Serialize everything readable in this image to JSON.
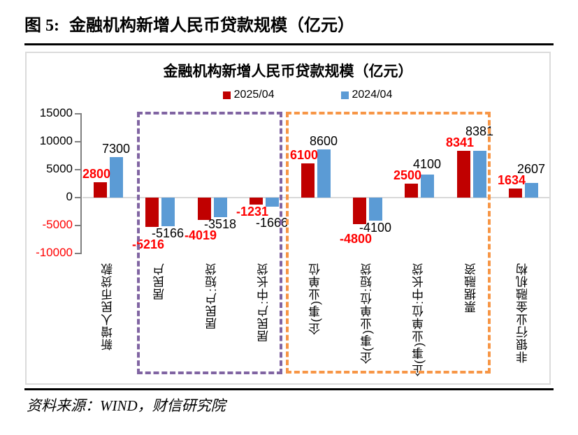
{
  "page": {
    "figure_label": "图 5:",
    "figure_title": "金融机构新增人民币贷款规模（亿元）",
    "source_text": "资料来源：WIND，财信研究院"
  },
  "chart_data": {
    "type": "bar",
    "title": "金融机构新增人民币贷款规模（亿元）",
    "categories": [
      "新增人民币贷款",
      "居民户",
      "居民户:短贷",
      "居民户:中长贷",
      "企(事)业单位",
      "企(事)业单位:短贷",
      "企(事)业单位:中长贷",
      "票据融资",
      "非银行业金融机构"
    ],
    "series": [
      {
        "name": "2025/04",
        "color": "#C00000",
        "label_color": "#FF0000",
        "values": [
          2800,
          -5216,
          -4019,
          -1231,
          6100,
          -4800,
          2500,
          8341,
          1634
        ]
      },
      {
        "name": "2024/04",
        "color": "#5B9BD5",
        "label_color": "#000000",
        "values": [
          7300,
          -5166,
          -3518,
          -1666,
          8600,
          -4100,
          4100,
          8381,
          2607
        ]
      }
    ],
    "ylim": [
      -10000,
      15000
    ],
    "yticks": [
      15000,
      10000,
      5000,
      0,
      -5000,
      -10000
    ],
    "negative_tick_color": "#FF0000",
    "grid": "zero-line-only",
    "legend_position": "top",
    "annotations": {
      "household_box": {
        "label": "household sector group",
        "categories_spanned": [
          "居民户",
          "居民户:短贷",
          "居民户:中长贷"
        ],
        "color": "#8064A2"
      },
      "corporate_box": {
        "label": "corporate sector group",
        "categories_spanned": [
          "企(事)业单位",
          "企(事)业单位:短贷",
          "企(事)业单位:中长贷",
          "票据融资"
        ],
        "color": "#F79646"
      }
    }
  }
}
